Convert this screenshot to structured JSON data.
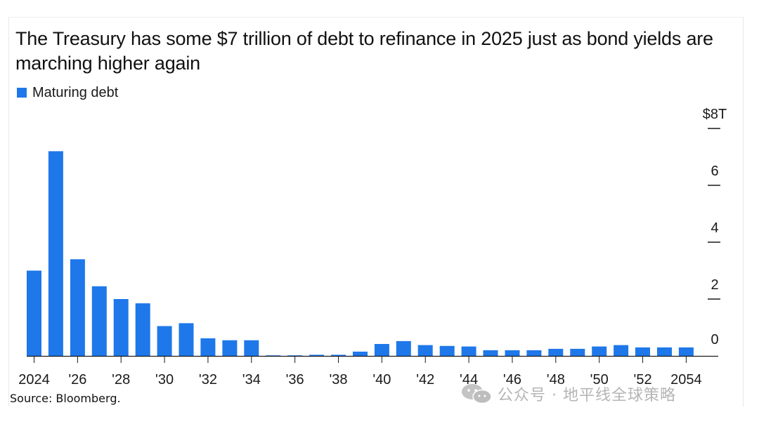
{
  "chart_data": {
    "type": "bar",
    "title": "The Treasury has some $7 trillion of debt to refinance in 2025 just as bond yields are marching higher again",
    "legend": [
      "Maturing debt"
    ],
    "legend_position": "top-left",
    "xlabel": "",
    "ylabel": "",
    "ylim": [
      0,
      8
    ],
    "y_ticks": [
      0,
      2,
      4,
      6,
      8
    ],
    "y_tick_labels": [
      "0",
      "2",
      "4",
      "6",
      "$8T"
    ],
    "x_tick_labels": [
      "2024",
      "'26",
      "'28",
      "'30",
      "'32",
      "'34",
      "'36",
      "'38",
      "'40",
      "'42",
      "'44",
      "'46",
      "'48",
      "'50",
      "'52",
      "2054"
    ],
    "categories": [
      2024,
      2025,
      2026,
      2027,
      2028,
      2029,
      2030,
      2031,
      2032,
      2033,
      2034,
      2035,
      2036,
      2037,
      2038,
      2039,
      2040,
      2041,
      2042,
      2043,
      2044,
      2045,
      2046,
      2047,
      2048,
      2049,
      2050,
      2051,
      2052,
      2053,
      2054
    ],
    "series": [
      {
        "name": "Maturing debt",
        "values": [
          3.0,
          7.2,
          3.4,
          2.45,
          2.0,
          1.85,
          1.05,
          1.15,
          0.62,
          0.55,
          0.55,
          0.02,
          0.02,
          0.04,
          0.04,
          0.15,
          0.42,
          0.52,
          0.38,
          0.35,
          0.33,
          0.2,
          0.2,
          0.2,
          0.25,
          0.25,
          0.33,
          0.38,
          0.3,
          0.3,
          0.3
        ]
      }
    ],
    "grid": false,
    "bar_color": "#1e78ea"
  },
  "source": "Source: Bloomberg.",
  "watermark": {
    "icon": "wechat-icon",
    "text": "公众号 · 地平线全球策略"
  },
  "colors": {
    "bar": "#1e78ea",
    "axis": "#1a1a1a",
    "text": "#1a1a1a",
    "watermark": "#b5b5b5"
  }
}
